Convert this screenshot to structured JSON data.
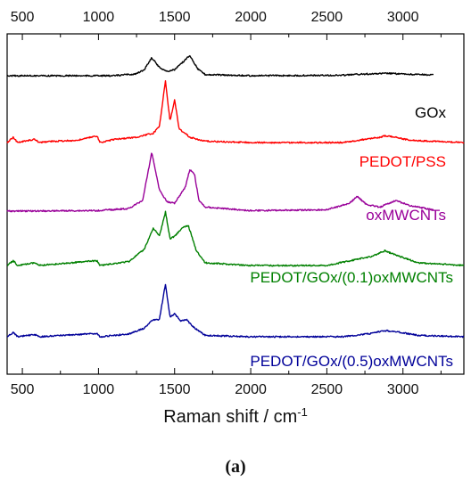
{
  "chart_data": {
    "type": "line",
    "title": "",
    "xlabel": "Raman shift / cm",
    "xlabel_superscript": "-1",
    "ylabel": "",
    "xlim": [
      400,
      3400
    ],
    "x_ticks": [
      500,
      1000,
      1500,
      2000,
      2500,
      3000
    ],
    "x_tick_labels": [
      "500",
      "1000",
      "1500",
      "2000",
      "2500",
      "3000"
    ],
    "top_axis_ticks": true,
    "y_ticks_labels": false,
    "grid": false,
    "legend": "none",
    "stacked_offset": true,
    "panel_label": "(a)",
    "series": [
      {
        "name": "GOx",
        "color": "#000000",
        "baseline": 0.0,
        "x_range": [
          400,
          3200
        ],
        "points": [
          [
            400,
            0
          ],
          [
            1100,
            0
          ],
          [
            1250,
            0.08
          ],
          [
            1300,
            0.25
          ],
          [
            1350,
            0.75
          ],
          [
            1400,
            0.35
          ],
          [
            1450,
            0.18
          ],
          [
            1500,
            0.25
          ],
          [
            1560,
            0.6
          ],
          [
            1600,
            0.85
          ],
          [
            1650,
            0.3
          ],
          [
            1700,
            0.05
          ],
          [
            2000,
            0
          ],
          [
            2600,
            0.02
          ],
          [
            2700,
            0.06
          ],
          [
            2900,
            0.1
          ],
          [
            3000,
            0.07
          ],
          [
            3200,
            0.03
          ]
        ]
      },
      {
        "name": "PEDOT/PSS",
        "color": "#ff0000",
        "baseline": 0.0,
        "x_range": [
          400,
          3400
        ],
        "points": [
          [
            400,
            0
          ],
          [
            440,
            0.2
          ],
          [
            470,
            0
          ],
          [
            580,
            0.12
          ],
          [
            610,
            0
          ],
          [
            700,
            0.05
          ],
          [
            860,
            0.08
          ],
          [
            990,
            0.25
          ],
          [
            1010,
            0
          ],
          [
            1100,
            0.12
          ],
          [
            1250,
            0.2
          ],
          [
            1360,
            0.35
          ],
          [
            1400,
            0.6
          ],
          [
            1440,
            2.3
          ],
          [
            1470,
            0.8
          ],
          [
            1500,
            1.6
          ],
          [
            1530,
            0.5
          ],
          [
            1570,
            0.35
          ],
          [
            1600,
            0.2
          ],
          [
            1700,
            0.05
          ],
          [
            2000,
            0
          ],
          [
            2600,
            0
          ],
          [
            2850,
            0.2
          ],
          [
            2880,
            0.25
          ],
          [
            2950,
            0.2
          ],
          [
            3050,
            0.08
          ],
          [
            3400,
            0
          ]
        ]
      },
      {
        "name": "oxMWCNTs",
        "color": "#990099",
        "baseline": 0.0,
        "x_range": [
          400,
          3200
        ],
        "points": [
          [
            400,
            0
          ],
          [
            1000,
            0.02
          ],
          [
            1200,
            0.1
          ],
          [
            1290,
            0.4
          ],
          [
            1350,
            2.2
          ],
          [
            1400,
            0.8
          ],
          [
            1450,
            0.35
          ],
          [
            1500,
            0.3
          ],
          [
            1570,
            0.9
          ],
          [
            1600,
            1.55
          ],
          [
            1630,
            1.4
          ],
          [
            1660,
            0.4
          ],
          [
            1700,
            0.15
          ],
          [
            2000,
            0.02
          ],
          [
            2500,
            0.05
          ],
          [
            2650,
            0.3
          ],
          [
            2700,
            0.55
          ],
          [
            2760,
            0.25
          ],
          [
            2850,
            0.15
          ],
          [
            2950,
            0.4
          ],
          [
            3050,
            0.2
          ],
          [
            3200,
            0.05
          ]
        ]
      },
      {
        "name": "PEDOT/GOx/(0.1)oxMWCNTs",
        "color": "#008000",
        "baseline": 0.0,
        "x_range": [
          400,
          3400
        ],
        "points": [
          [
            400,
            0
          ],
          [
            440,
            0.18
          ],
          [
            470,
            0
          ],
          [
            580,
            0.1
          ],
          [
            610,
            0
          ],
          [
            990,
            0.18
          ],
          [
            1010,
            0
          ],
          [
            1200,
            0.15
          ],
          [
            1300,
            0.6
          ],
          [
            1360,
            1.4
          ],
          [
            1400,
            1.1
          ],
          [
            1440,
            2.0
          ],
          [
            1470,
            1.0
          ],
          [
            1500,
            1.1
          ],
          [
            1550,
            1.4
          ],
          [
            1590,
            1.5
          ],
          [
            1640,
            0.6
          ],
          [
            1700,
            0.1
          ],
          [
            2000,
            0
          ],
          [
            2500,
            0
          ],
          [
            2800,
            0.35
          ],
          [
            2880,
            0.55
          ],
          [
            2950,
            0.4
          ],
          [
            3100,
            0.1
          ],
          [
            3400,
            0
          ]
        ]
      },
      {
        "name": "PEDOT/GOx/(0.5)oxMWCNTs",
        "color": "#000099",
        "baseline": 0.0,
        "x_range": [
          400,
          3400
        ],
        "points": [
          [
            400,
            0
          ],
          [
            440,
            0.15
          ],
          [
            470,
            0
          ],
          [
            580,
            0.08
          ],
          [
            610,
            0
          ],
          [
            990,
            0.12
          ],
          [
            1010,
            0
          ],
          [
            1200,
            0.1
          ],
          [
            1300,
            0.3
          ],
          [
            1360,
            0.6
          ],
          [
            1400,
            0.6
          ],
          [
            1440,
            1.85
          ],
          [
            1470,
            0.7
          ],
          [
            1500,
            0.8
          ],
          [
            1540,
            0.55
          ],
          [
            1580,
            0.6
          ],
          [
            1620,
            0.35
          ],
          [
            1700,
            0.05
          ],
          [
            2000,
            0
          ],
          [
            2600,
            0
          ],
          [
            2800,
            0.12
          ],
          [
            2880,
            0.22
          ],
          [
            2950,
            0.18
          ],
          [
            3100,
            0.05
          ],
          [
            3400,
            0
          ]
        ]
      }
    ]
  }
}
